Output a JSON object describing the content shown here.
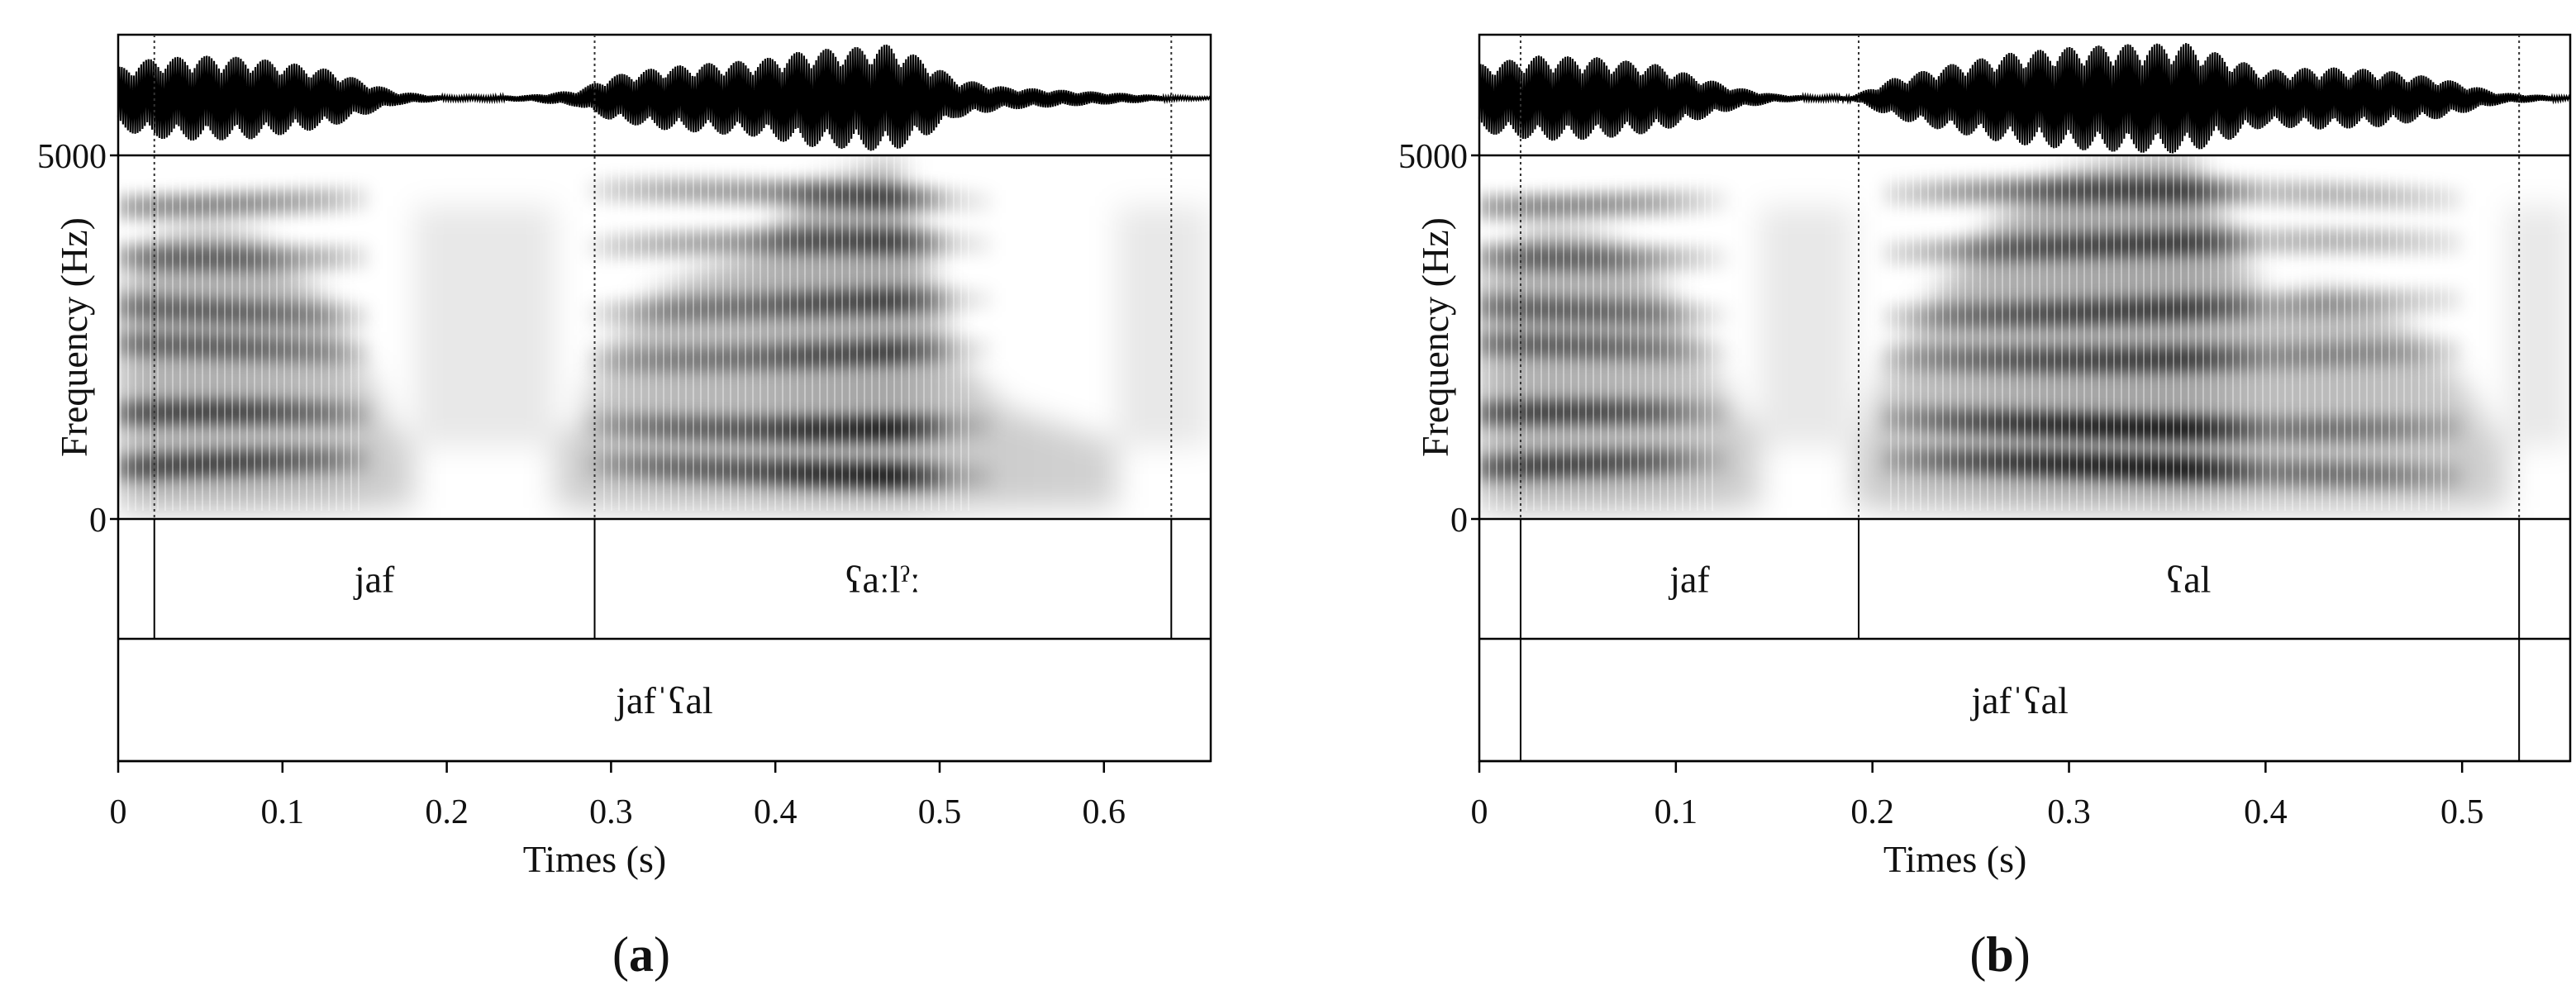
{
  "chart_data": [
    {
      "type": "spectrogram",
      "panel_label": "(a)",
      "panel_letter": "a",
      "xlabel": "Times (s)",
      "ylabel": "Frequency (Hz)",
      "xlim": [
        0,
        0.665
      ],
      "ylim": [
        0,
        5000
      ],
      "x_ticks": [
        0,
        0.1,
        0.2,
        0.3,
        0.4,
        0.5,
        0.6
      ],
      "x_tick_labels": [
        "0",
        "0.1",
        "0.2",
        "0.3",
        "0.4",
        "0.5",
        "0.6"
      ],
      "y_tick_labels": [
        "0",
        "5000"
      ],
      "segment_boundaries": [
        0.022,
        0.29,
        0.641
      ],
      "tier1": [
        {
          "start": 0.022,
          "end": 0.29,
          "label": "jaf"
        },
        {
          "start": 0.29,
          "end": 0.641,
          "label": "ʕaːlˀː"
        }
      ],
      "tier2": [
        {
          "start": 0.0,
          "end": 0.665,
          "label": "jafˈʕal"
        }
      ],
      "waveform_envelope": [
        [
          0.0,
          0.55
        ],
        [
          0.02,
          0.7
        ],
        [
          0.05,
          0.75
        ],
        [
          0.08,
          0.72
        ],
        [
          0.11,
          0.6
        ],
        [
          0.13,
          0.5
        ],
        [
          0.15,
          0.3
        ],
        [
          0.17,
          0.12
        ],
        [
          0.2,
          0.04
        ],
        [
          0.22,
          0.04
        ],
        [
          0.25,
          0.06
        ],
        [
          0.28,
          0.15
        ],
        [
          0.3,
          0.4
        ],
        [
          0.33,
          0.55
        ],
        [
          0.36,
          0.62
        ],
        [
          0.39,
          0.68
        ],
        [
          0.42,
          0.85
        ],
        [
          0.45,
          0.9
        ],
        [
          0.47,
          0.95
        ],
        [
          0.49,
          0.7
        ],
        [
          0.51,
          0.35
        ],
        [
          0.54,
          0.2
        ],
        [
          0.58,
          0.14
        ],
        [
          0.62,
          0.08
        ],
        [
          0.64,
          0.04
        ],
        [
          0.665,
          0.02
        ]
      ]
    },
    {
      "type": "spectrogram",
      "panel_label": "(b)",
      "panel_letter": "b",
      "xlabel": "Times (s)",
      "ylabel": "Frequency (Hz)",
      "xlim": [
        0,
        0.555
      ],
      "ylim": [
        0,
        5000
      ],
      "x_ticks": [
        0,
        0.1,
        0.2,
        0.3,
        0.4,
        0.5
      ],
      "x_tick_labels": [
        "0",
        "0.1",
        "0.2",
        "0.3",
        "0.4",
        "0.5"
      ],
      "y_tick_labels": [
        "0",
        "5000"
      ],
      "segment_boundaries": [
        0.021,
        0.193,
        0.529
      ],
      "tier1": [
        {
          "start": 0.021,
          "end": 0.193,
          "label": "jaf"
        },
        {
          "start": 0.193,
          "end": 0.529,
          "label": "ʕal"
        }
      ],
      "tier2": [
        {
          "start": 0.021,
          "end": 0.529,
          "label": "jafˈʕal"
        }
      ],
      "waveform_envelope": [
        [
          0.0,
          0.6
        ],
        [
          0.03,
          0.75
        ],
        [
          0.06,
          0.72
        ],
        [
          0.09,
          0.6
        ],
        [
          0.11,
          0.4
        ],
        [
          0.13,
          0.2
        ],
        [
          0.15,
          0.08
        ],
        [
          0.17,
          0.04
        ],
        [
          0.19,
          0.05
        ],
        [
          0.21,
          0.35
        ],
        [
          0.24,
          0.6
        ],
        [
          0.27,
          0.8
        ],
        [
          0.3,
          0.9
        ],
        [
          0.33,
          0.95
        ],
        [
          0.36,
          0.97
        ],
        [
          0.38,
          0.75
        ],
        [
          0.4,
          0.5
        ],
        [
          0.43,
          0.55
        ],
        [
          0.46,
          0.5
        ],
        [
          0.49,
          0.35
        ],
        [
          0.52,
          0.1
        ],
        [
          0.555,
          0.03
        ]
      ]
    }
  ]
}
